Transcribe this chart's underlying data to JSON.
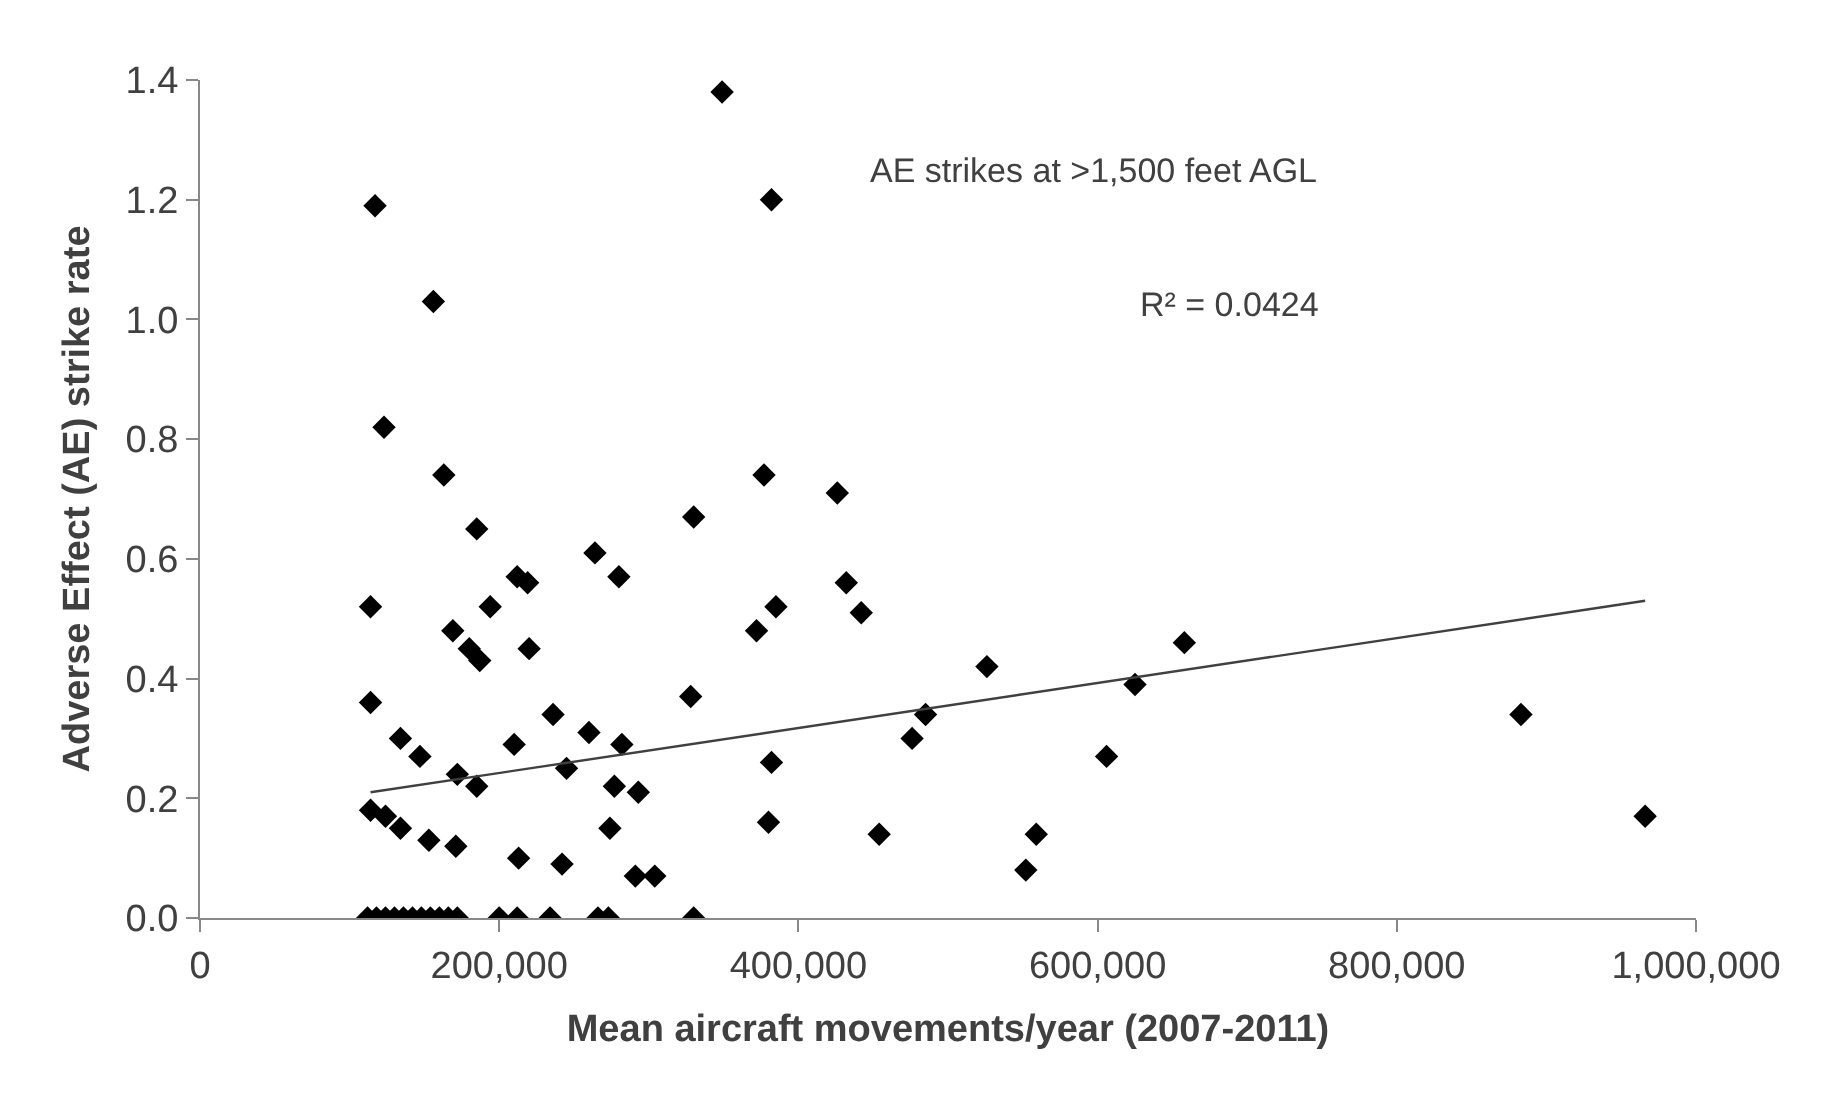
{
  "chart_data": {
    "type": "scatter",
    "xlabel": "Mean aircraft movements/year (2007-2011)",
    "ylabel": "Adverse Effect (AE) strike rate",
    "annotations": [
      "AE strikes at >1,500 feet AGL",
      "R² = 0.0424"
    ],
    "xlim": [
      0,
      1000000
    ],
    "xticks": [
      0,
      {
        "value": 200000,
        "label": "200,000"
      },
      {
        "value": 400000,
        "label": "400,000"
      },
      {
        "value": 600000,
        "label": "600,000"
      },
      {
        "value": 800000,
        "label": "800,000"
      },
      {
        "value": 1000000,
        "label": "1,000,000"
      }
    ],
    "ylim": [
      0,
      1.4
    ],
    "yticks": [
      {
        "value": 0,
        "label": "0.0"
      },
      {
        "value": 0.2,
        "label": "0.2"
      },
      {
        "value": 0.4,
        "label": "0.4"
      },
      {
        "value": 0.6,
        "label": "0.6"
      },
      {
        "value": 0.8,
        "label": "0.8"
      },
      {
        "value": 1,
        "label": "1.0"
      },
      {
        "value": 1.2,
        "label": "1.2"
      },
      {
        "value": 1.4,
        "label": "1.4"
      }
    ],
    "grid": false,
    "marker": "diamond",
    "series": [
      {
        "color": "#000000",
        "x": [
          117000,
          156000,
          123000,
          163000,
          185000,
          114000,
          194000,
          212000,
          219000,
          169000,
          180000,
          187000,
          220000,
          114000,
          134000,
          147000,
          210000,
          236000,
          260000,
          172000,
          185000,
          245000,
          277000,
          264000,
          280000,
          114000,
          124000,
          134000,
          153000,
          171000,
          213000,
          242000,
          274000,
          282000,
          293000,
          291000,
          304000,
          112000,
          118000,
          124000,
          130000,
          136000,
          142000,
          148000,
          154000,
          160000,
          166000,
          172000,
          200000,
          212000,
          234000,
          266000,
          273000,
          330000,
          349000,
          382000,
          377000,
          426000,
          330000,
          432000,
          385000,
          442000,
          372000,
          328000,
          526000,
          485000,
          476000,
          382000,
          606000,
          380000,
          454000,
          559000,
          552000,
          625000,
          658000,
          883000,
          966000
        ],
        "values": [
          1.19,
          1.03,
          0.82,
          0.74,
          0.65,
          0.52,
          0.52,
          0.57,
          0.56,
          0.48,
          0.45,
          0.43,
          0.45,
          0.36,
          0.3,
          0.27,
          0.29,
          0.34,
          0.31,
          0.24,
          0.22,
          0.25,
          0.22,
          0.61,
          0.57,
          0.18,
          0.17,
          0.15,
          0.13,
          0.12,
          0.1,
          0.09,
          0.15,
          0.29,
          0.21,
          0.07,
          0.07,
          0,
          0,
          0,
          0,
          0,
          0,
          0,
          0,
          0,
          0,
          0,
          0,
          0,
          0,
          0,
          0,
          0,
          1.38,
          1.2,
          0.74,
          0.71,
          0.67,
          0.56,
          0.52,
          0.51,
          0.48,
          0.37,
          0.42,
          0.34,
          0.3,
          0.26,
          0.27,
          0.16,
          0.14,
          0.14,
          0.08,
          0.39,
          0.46,
          0.34,
          0.17
        ]
      },
      {
        "type": "line",
        "marker": "none",
        "color": "#404040",
        "line_style": "solid",
        "x": [
          114000,
          966000
        ],
        "values": [
          0.21,
          0.53
        ]
      }
    ]
  }
}
